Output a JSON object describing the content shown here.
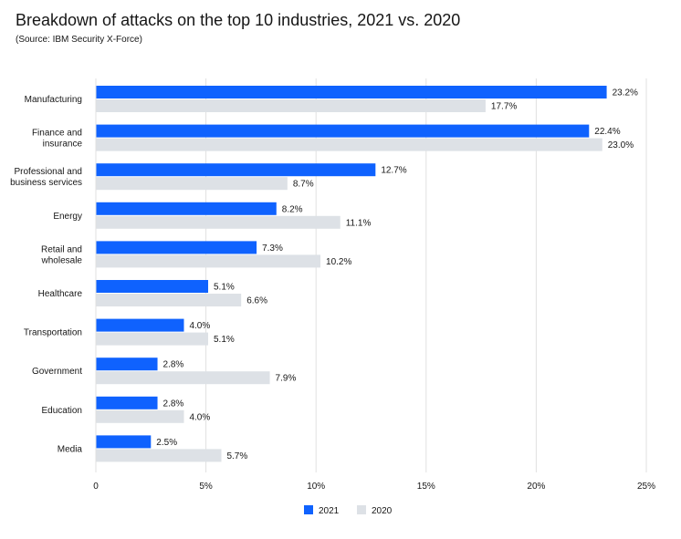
{
  "chart_data": {
    "type": "bar",
    "orientation": "horizontal",
    "title": "Breakdown of attacks on the top 10 industries, 2021 vs. 2020",
    "subtitle": "(Source: IBM Security X-Force)",
    "categories": [
      [
        "Manufacturing"
      ],
      [
        "Finance and",
        "insurance"
      ],
      [
        "Professional and",
        "business services"
      ],
      [
        "Energy"
      ],
      [
        "Retail and",
        "wholesale"
      ],
      [
        "Healthcare"
      ],
      [
        "Transportation"
      ],
      [
        "Government"
      ],
      [
        "Education"
      ],
      [
        "Media"
      ]
    ],
    "series": [
      {
        "name": "2021",
        "color": "#0f62fe",
        "values": [
          23.2,
          22.4,
          12.7,
          8.2,
          7.3,
          5.1,
          4.0,
          2.8,
          2.8,
          2.5
        ],
        "labels": [
          "23.2%",
          "22.4%",
          "12.7%",
          "8.2%",
          "7.3%",
          "5.1%",
          "4.0%",
          "2.8%",
          "2.8%",
          "2.5%"
        ]
      },
      {
        "name": "2020",
        "color": "#dde1e6",
        "values": [
          17.7,
          23.0,
          8.7,
          11.1,
          10.2,
          6.6,
          5.1,
          7.9,
          4.0,
          5.7
        ],
        "labels": [
          "17.7%",
          "23.0%",
          "8.7%",
          "11.1%",
          "10.2%",
          "6.6%",
          "5.1%",
          "7.9%",
          "4.0%",
          "5.7%"
        ]
      }
    ],
    "xlim": [
      0,
      25
    ],
    "xticks": [
      0,
      5,
      10,
      15,
      20,
      25
    ],
    "xtick_labels": [
      "0",
      "5%",
      "10%",
      "15%",
      "20%",
      "25%"
    ],
    "grid": true,
    "legend": "bottom-center"
  }
}
